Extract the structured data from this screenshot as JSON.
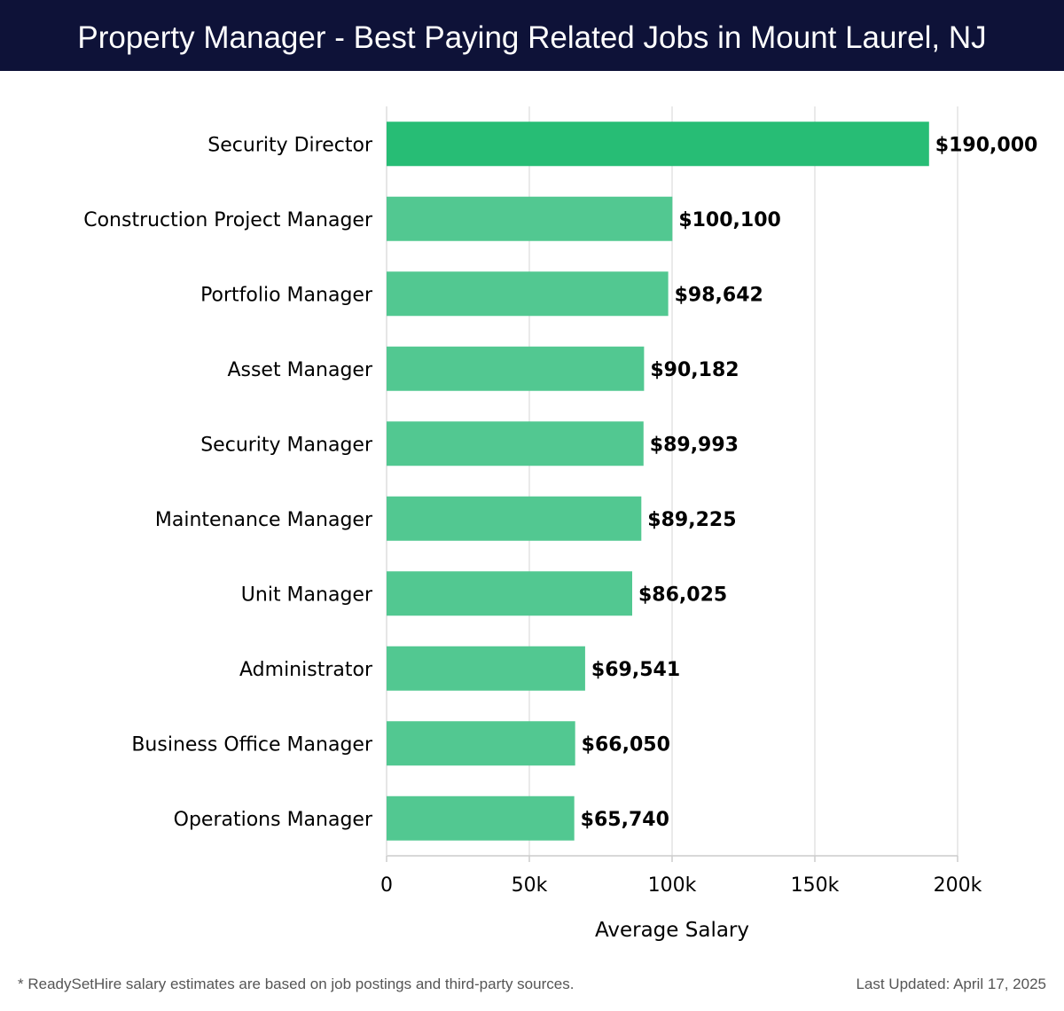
{
  "header": {
    "title": "Property Manager - Best Paying Related Jobs in Mount Laurel, NJ"
  },
  "chart_data": {
    "type": "bar",
    "orientation": "horizontal",
    "title": "Property Manager - Best Paying Related Jobs in Mount Laurel, NJ",
    "xlabel": "Average Salary",
    "ylabel": "",
    "xlim": [
      0,
      200000
    ],
    "xticks": [
      0,
      50000,
      100000,
      150000,
      200000
    ],
    "xtick_labels": [
      "0",
      "50k",
      "100k",
      "150k",
      "200k"
    ],
    "grid": true,
    "categories": [
      "Security Director",
      "Construction Project Manager",
      "Portfolio Manager",
      "Asset Manager",
      "Security Manager",
      "Maintenance Manager",
      "Unit Manager",
      "Administrator",
      "Business Office Manager",
      "Operations Manager"
    ],
    "values": [
      190000,
      100100,
      98642,
      90182,
      89993,
      89225,
      86025,
      69541,
      66050,
      65740
    ],
    "value_labels": [
      "$190,000",
      "$100,100",
      "$98,642",
      "$90,182",
      "$89,993",
      "$89,225",
      "$86,025",
      "$69,541",
      "$66,050",
      "$65,740"
    ],
    "highlight_color": "#27bd75",
    "bar_color": "#52c891"
  },
  "footer": {
    "note": "* ReadySetHire salary estimates are based on job postings and third-party sources.",
    "updated": "Last Updated: April 17, 2025"
  }
}
